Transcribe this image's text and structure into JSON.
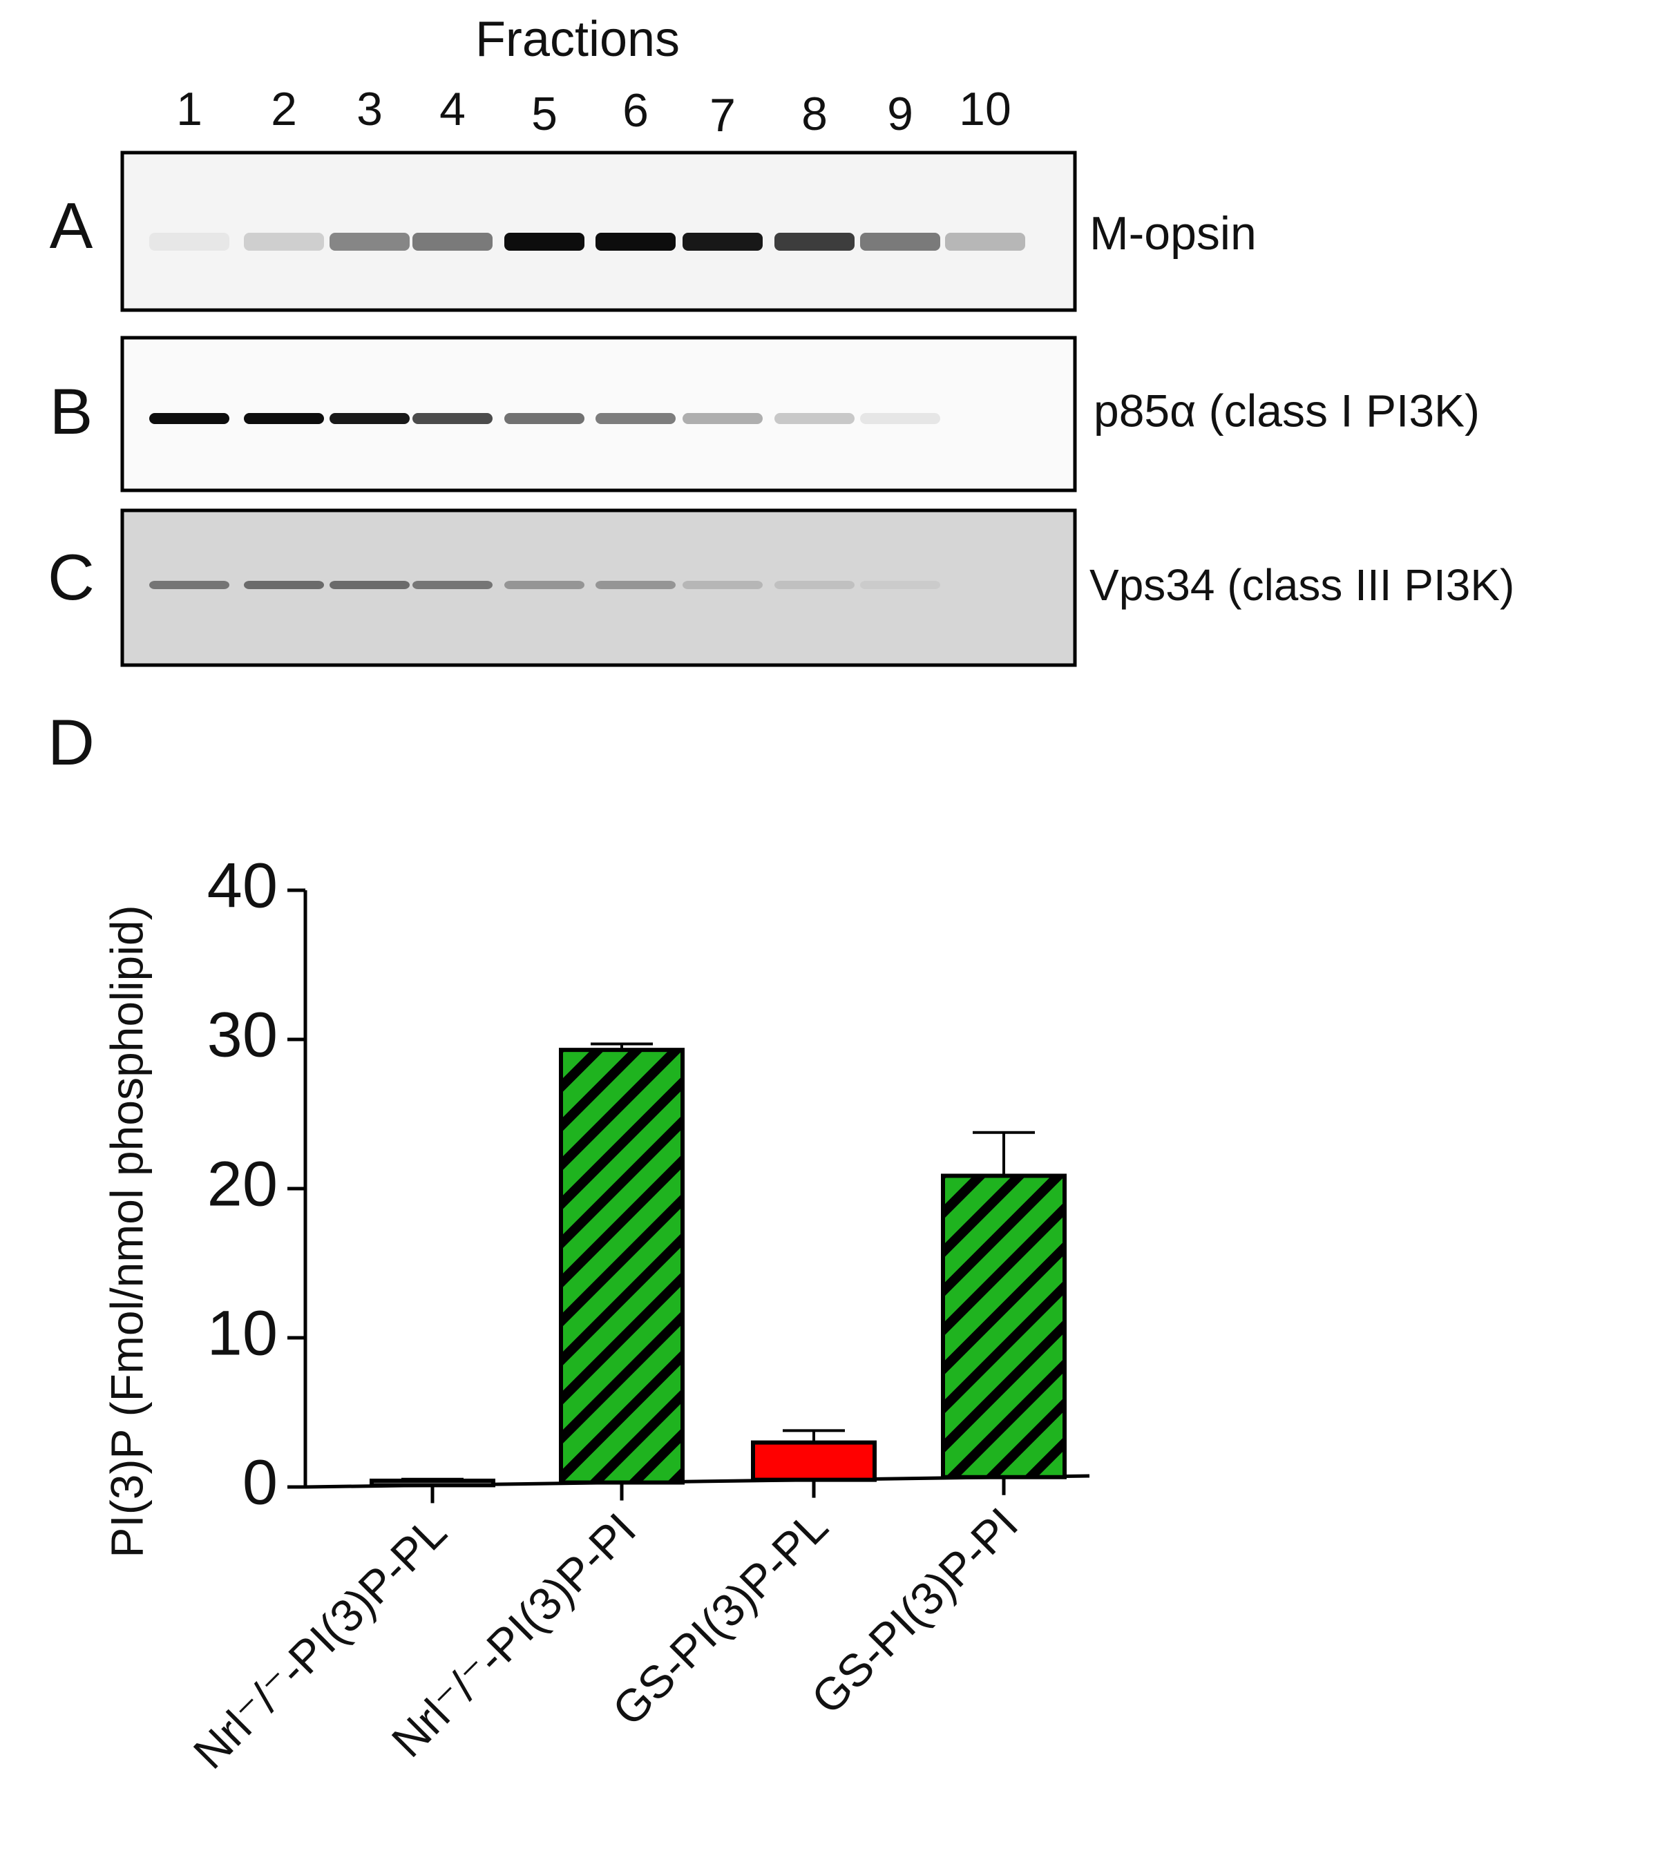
{
  "panels": {
    "a": "A",
    "b": "B",
    "c": "C",
    "d": "D"
  },
  "blot": {
    "header": "Fractions",
    "lanes": [
      "1",
      "2",
      "3",
      "4",
      "5",
      "6",
      "7",
      "8",
      "9",
      "10"
    ],
    "labels": [
      "M-opsin",
      "p85α (class I PI3K)",
      "Vps34 (class III PI3K)"
    ]
  },
  "chart_data": {
    "type": "bar",
    "y_label": "PI(3)P (Fmol/nmol phospholipid)",
    "categories": [
      "Nrl⁻/⁻-PI(3)P-PL",
      "Nrl⁻/⁻-PI(3)P-PI",
      "GS-PI(3)P-PL",
      "GS-PI(3)P-PI"
    ],
    "values": [
      0.3,
      29,
      2.5,
      20.2
    ],
    "errors": [
      0.1,
      0.4,
      0.8,
      2.9
    ],
    "colors": [
      "#ffffff",
      "#1fb31f",
      "#ff0000",
      "#1fb31f"
    ],
    "hatch": [
      false,
      true,
      false,
      true
    ],
    "ylim": [
      0,
      40
    ],
    "yticks": [
      0,
      10,
      20,
      30,
      40
    ]
  }
}
